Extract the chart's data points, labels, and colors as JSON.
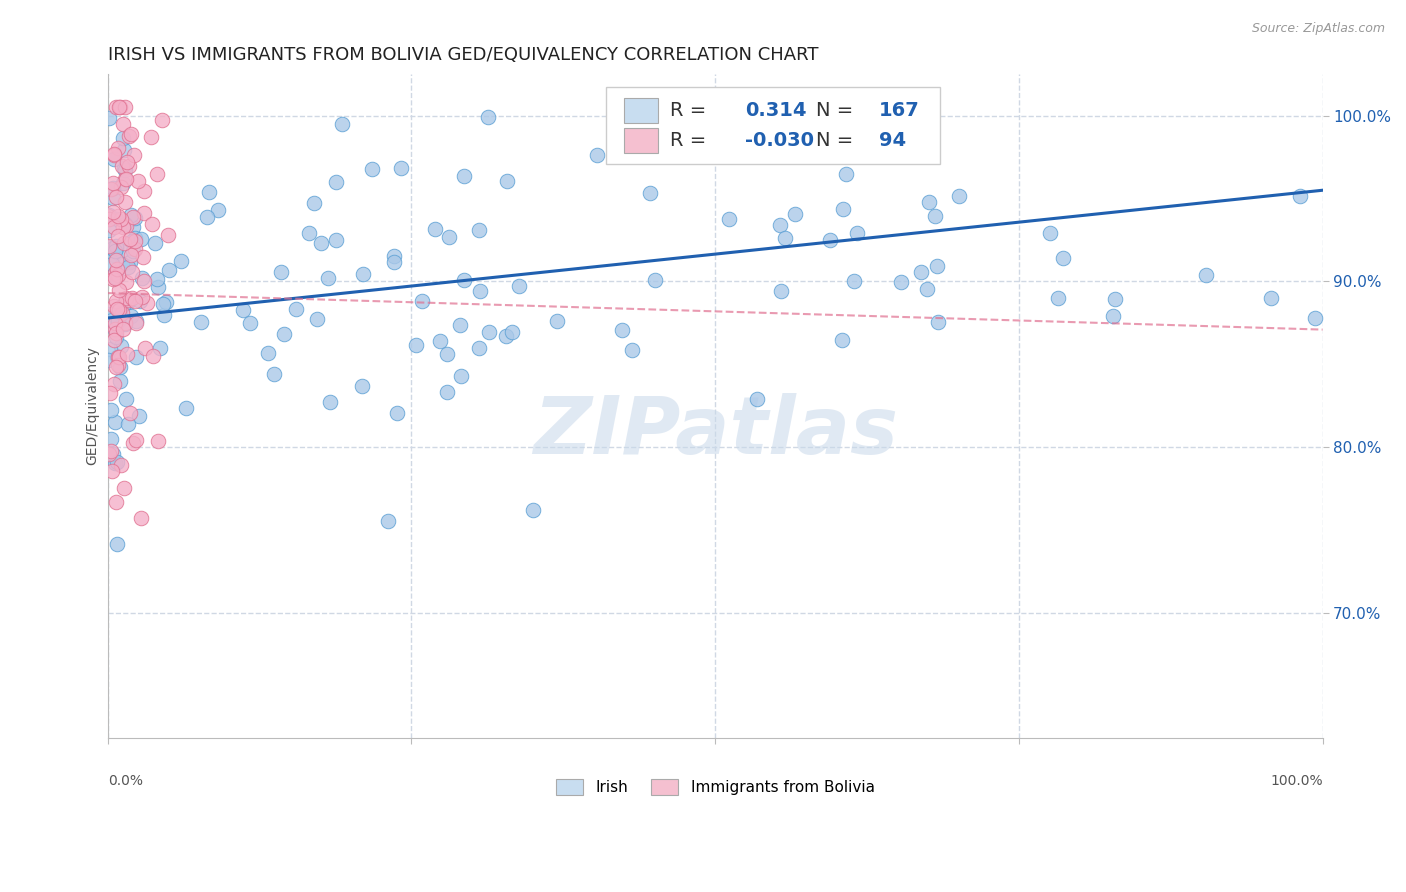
{
  "title": "IRISH VS IMMIGRANTS FROM BOLIVIA GED/EQUIVALENCY CORRELATION CHART",
  "source_text": "Source: ZipAtlas.com",
  "ylabel": "GED/Equivalency",
  "r_irish": 0.314,
  "n_irish": 167,
  "r_bolivia": -0.03,
  "n_bolivia": 94,
  "irish_color": "#aac8e8",
  "irish_edge_color": "#5a9fd4",
  "irish_line_color": "#2060b0",
  "bolivia_color": "#f4b0c8",
  "bolivia_edge_color": "#e07090",
  "bolivia_line_color": "#e07090",
  "watermark_color": "#c8d8ea",
  "legend_box_irish": "#c8ddf0",
  "legend_box_bolivia": "#f5c0d0",
  "ytick_labels": [
    "70.0%",
    "80.0%",
    "90.0%",
    "100.0%"
  ],
  "ytick_values": [
    0.7,
    0.8,
    0.9,
    1.0
  ],
  "xlim": [
    0.0,
    1.0
  ],
  "ylim": [
    0.625,
    1.025
  ],
  "background_color": "#ffffff",
  "grid_color": "#d0d8e4",
  "title_fontsize": 13,
  "axis_label_fontsize": 10,
  "legend_fontsize": 14
}
